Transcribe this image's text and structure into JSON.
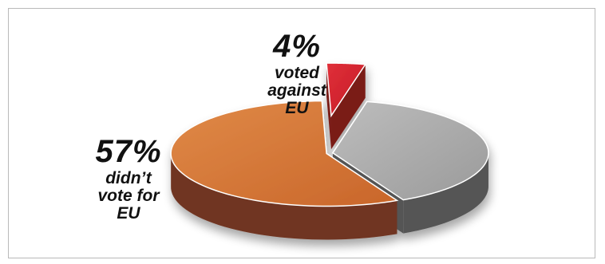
{
  "chart_data": {
    "type": "pie",
    "title": "",
    "slices": [
      {
        "key": "voted_against",
        "value": 4,
        "pct_label": "4%",
        "desc_lines": [
          "voted",
          "against",
          "EU"
        ],
        "color": "#d01f2a",
        "side_color": "#7a1a18",
        "exploded": true
      },
      {
        "key": "other",
        "value": 39,
        "pct_label": "",
        "desc_lines": [],
        "color": "#a3a3a3",
        "side_color": "#555555",
        "exploded": false
      },
      {
        "key": "didnt_vote_for",
        "value": 57,
        "pct_label": "57%",
        "desc_lines": [
          "didn’t",
          "vote for",
          "EU"
        ],
        "color": "#d3722e",
        "side_color": "#6f3521",
        "exploded": false
      }
    ]
  }
}
